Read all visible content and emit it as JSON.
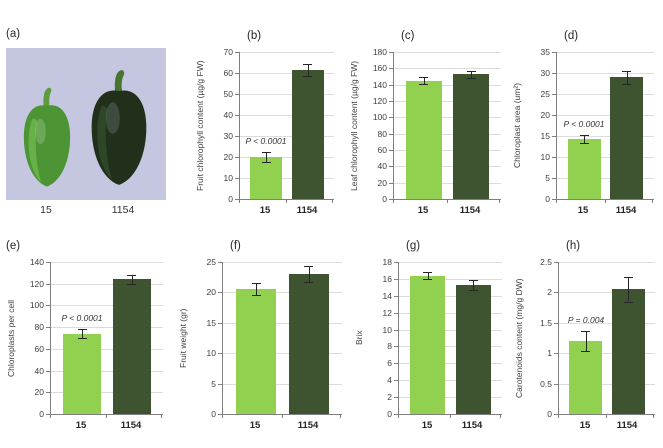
{
  "panel_a": {
    "label": "(a)",
    "caption_labels": [
      "15",
      "1154"
    ],
    "photo_bg": "#c5c7e1",
    "peppers": [
      {
        "name": "15",
        "body_color": "#4d9434",
        "stem_color": "#5f9a40",
        "highlight_color": "#7fc85a"
      },
      {
        "name": "1154",
        "body_color": "#20301a",
        "stem_color": "#47742f",
        "highlight_color": "#3c5a33"
      }
    ]
  },
  "colors": {
    "bar_light_green": "#92d050",
    "bar_dark_green": "#3e5430",
    "grid": "#dcdcdc",
    "axis": "#7f7f7f",
    "error_bar": "#262626"
  },
  "chart_data": [
    {
      "type": "bar",
      "panel_label": "(b)",
      "ylabel": "Fruit chlorophyll content (µg/g FW)",
      "categories": [
        "15",
        "1154"
      ],
      "values": [
        20,
        61.5
      ],
      "errors": [
        2.5,
        3
      ],
      "ylim": [
        0,
        70
      ],
      "ystep": 10,
      "annotation": "P < 0.0001",
      "bar_colors": [
        "#92d050",
        "#3e5430"
      ],
      "grid": true,
      "legend": "none"
    },
    {
      "type": "bar",
      "panel_label": "(c)",
      "ylabel": "Leaf chlorophyll content (µg/g FW)",
      "categories": [
        "15",
        "1154"
      ],
      "values": [
        145,
        152.5
      ],
      "errors": [
        4,
        4
      ],
      "ylim": [
        0,
        180
      ],
      "ystep": 20,
      "annotation": null,
      "bar_colors": [
        "#92d050",
        "#3e5430"
      ],
      "grid": true,
      "legend": "none"
    },
    {
      "type": "bar",
      "panel_label": "(d)",
      "ylabel": "Chloroplast area (um²)",
      "categories": [
        "15",
        "1154"
      ],
      "values": [
        14.3,
        29
      ],
      "errors": [
        1,
        1.5
      ],
      "ylim": [
        0,
        35
      ],
      "ystep": 5,
      "annotation": "P < 0.0001",
      "bar_colors": [
        "#92d050",
        "#3e5430"
      ],
      "grid": true,
      "legend": "none"
    },
    {
      "type": "bar",
      "panel_label": "(e)",
      "ylabel": "Chloroplasts per cell",
      "categories": [
        "15",
        "1154"
      ],
      "values": [
        74,
        124
      ],
      "errors": [
        4,
        4
      ],
      "ylim": [
        0,
        140
      ],
      "ystep": 20,
      "annotation": "P < 0.0001",
      "bar_colors": [
        "#92d050",
        "#3e5430"
      ],
      "grid": true,
      "legend": "none"
    },
    {
      "type": "bar",
      "panel_label": "(f)",
      "ylabel": "Fruit weight (gr)",
      "categories": [
        "15",
        "1154"
      ],
      "values": [
        20.5,
        23
      ],
      "errors": [
        1,
        1.3
      ],
      "ylim": [
        0,
        25
      ],
      "ystep": 5,
      "annotation": null,
      "bar_colors": [
        "#92d050",
        "#3e5430"
      ],
      "grid": true,
      "legend": "none"
    },
    {
      "type": "bar",
      "panel_label": "(g)",
      "ylabel": "Brix",
      "categories": [
        "15",
        "1154"
      ],
      "values": [
        16.4,
        15.3
      ],
      "errors": [
        0.4,
        0.6
      ],
      "ylim": [
        0,
        18
      ],
      "ystep": 2,
      "annotation": null,
      "bar_colors": [
        "#92d050",
        "#3e5430"
      ],
      "grid": true,
      "legend": "none"
    },
    {
      "type": "bar",
      "panel_label": "(h)",
      "ylabel": "Carotenoids content (mg/g DW)",
      "categories": [
        "15",
        "1154"
      ],
      "values": [
        1.2,
        2.05
      ],
      "errors": [
        0.17,
        0.2
      ],
      "ylim": [
        0,
        2.5
      ],
      "ystep": 0.5,
      "annotation": "P = 0.004",
      "bar_colors": [
        "#92d050",
        "#3e5430"
      ],
      "grid": true,
      "legend": "none"
    }
  ]
}
